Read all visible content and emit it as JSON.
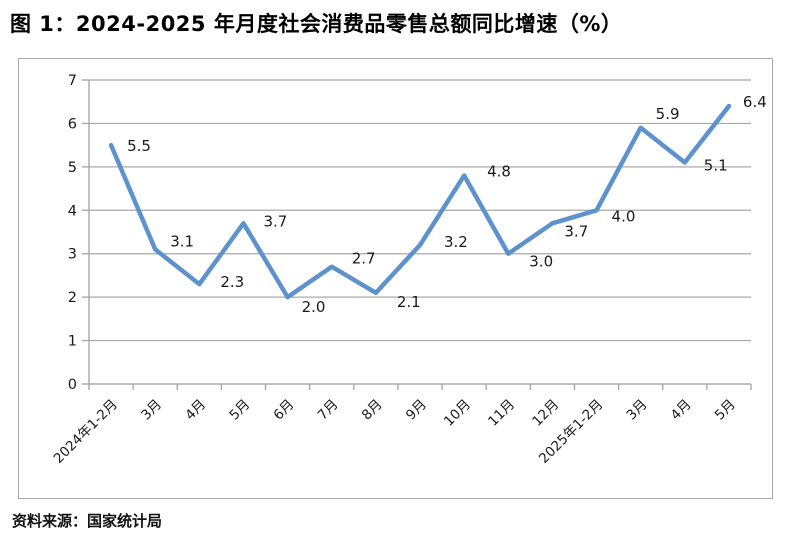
{
  "chart_data": {
    "type": "line",
    "title": "图 1：2024-2025 年月度社会消费品零售总额同比增速（%）",
    "source_note": "资料来源：国家统计局",
    "categories": [
      "2024年1-2月",
      "3月",
      "4月",
      "5月",
      "6月",
      "7月",
      "8月",
      "9月",
      "10月",
      "11月",
      "12月",
      "2025年1-2月",
      "3月",
      "4月",
      "5月"
    ],
    "values": [
      5.5,
      3.1,
      2.3,
      3.7,
      2.0,
      2.7,
      2.1,
      3.2,
      4.8,
      3.0,
      3.7,
      4.0,
      5.9,
      5.1,
      6.4
    ],
    "xlabel": "",
    "ylabel": "",
    "ylim": [
      0,
      7
    ],
    "ytick_interval": 1,
    "grid": true,
    "legend": false,
    "data_labels": true,
    "line_color": "#5e92cd",
    "grid_color": "#a8a8a8",
    "axis_color": "#a8a8a8",
    "text_color": "#1a1a1a",
    "border_color": "#a9a9a9"
  }
}
